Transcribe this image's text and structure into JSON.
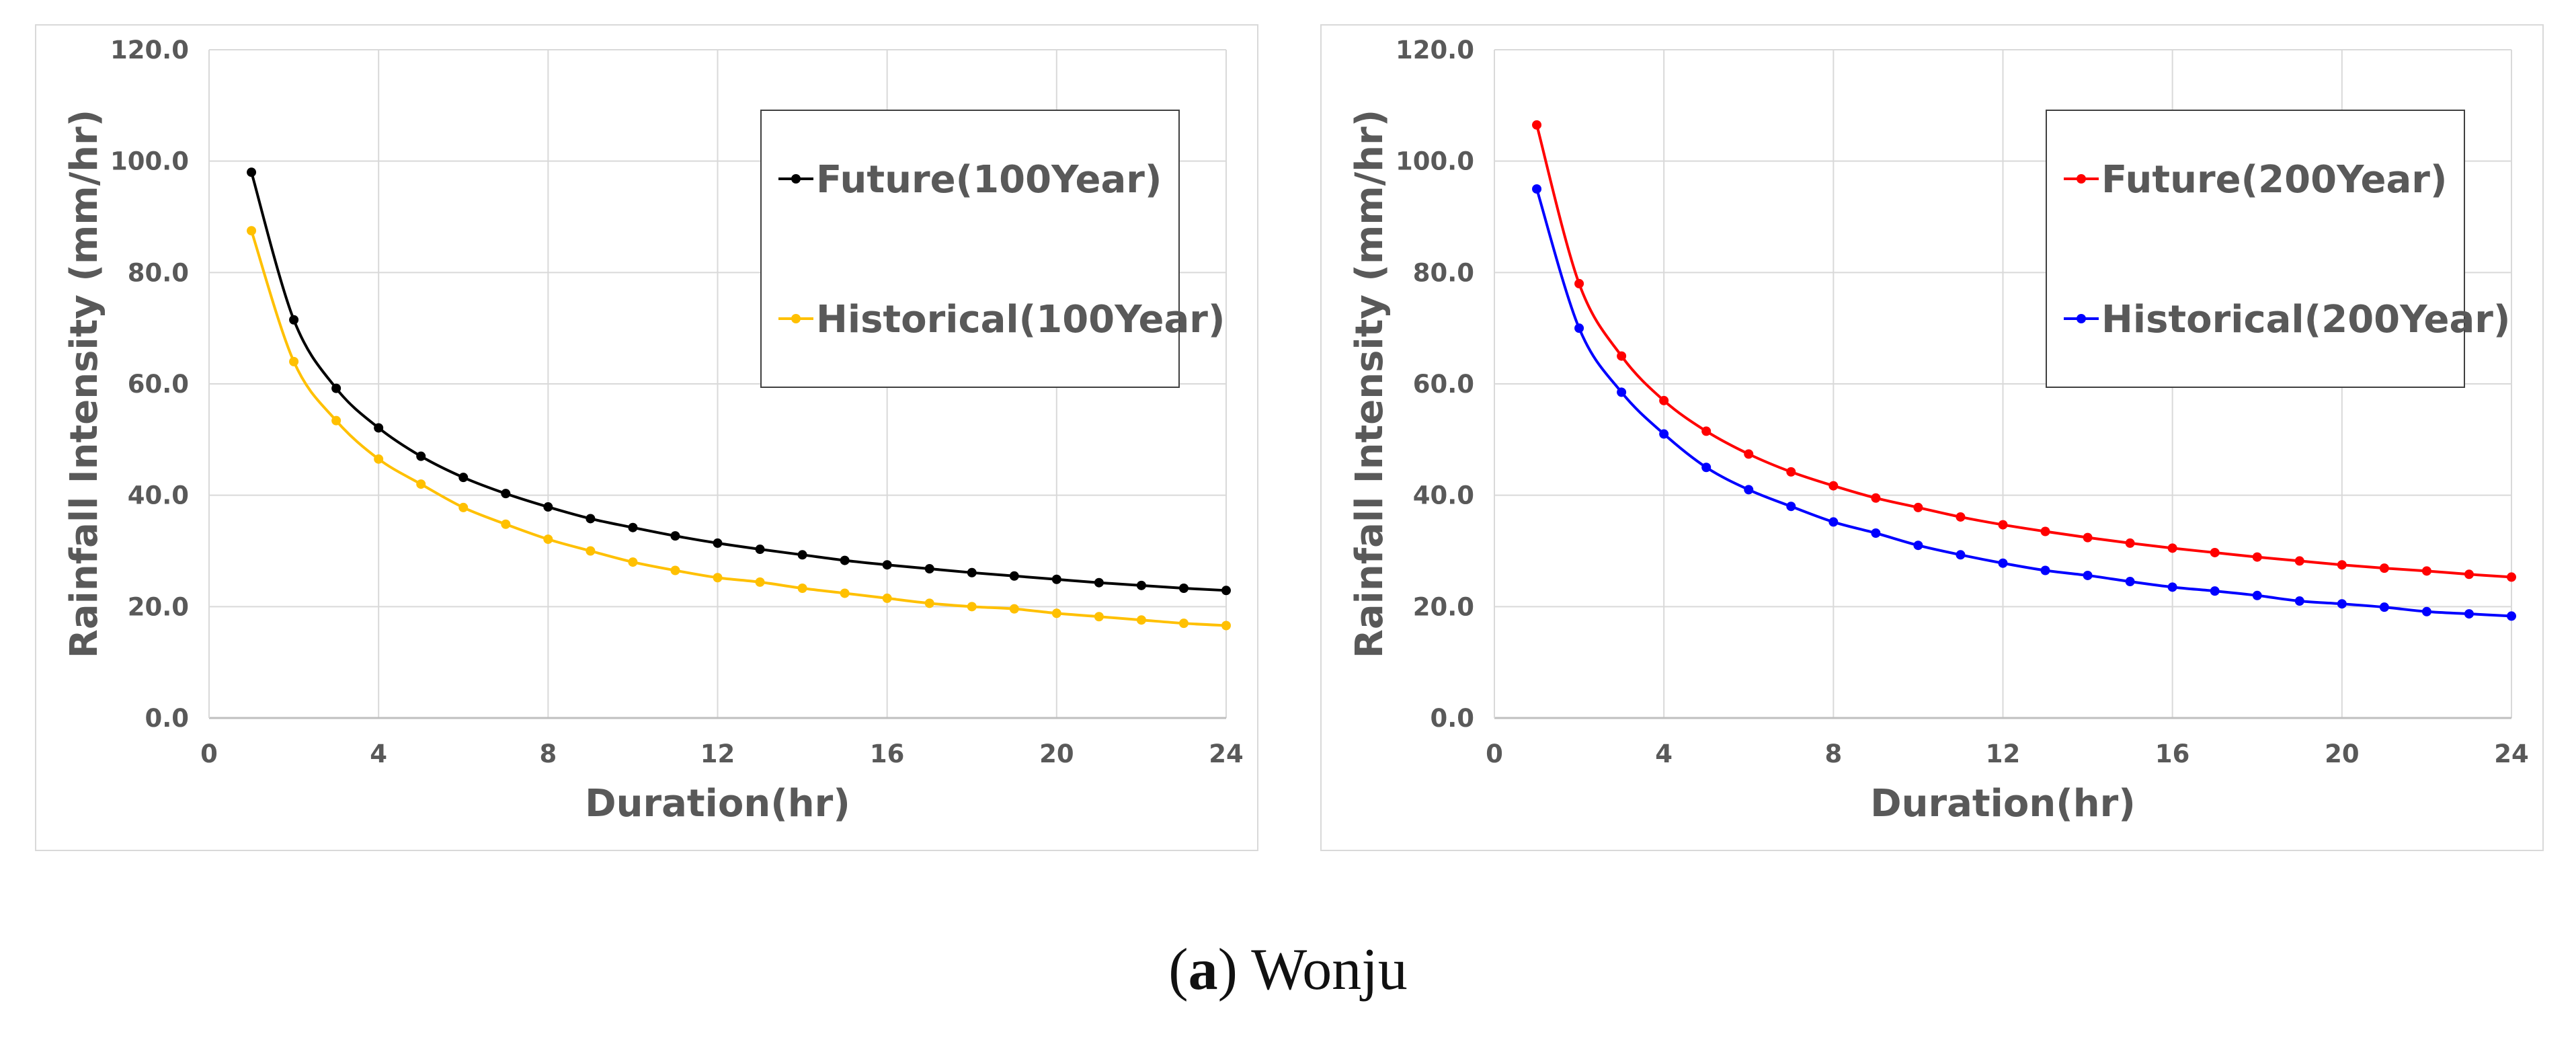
{
  "chart_data": [
    {
      "type": "line",
      "xlabel": "Duration(hr)",
      "ylabel": "Rainfall Intensity (mm/hr)",
      "xlim": [
        0,
        24
      ],
      "ylim": [
        0,
        120
      ],
      "x_ticks": [
        "0",
        "4",
        "8",
        "12",
        "16",
        "20",
        "24"
      ],
      "y_ticks": [
        "0.0",
        "20.0",
        "40.0",
        "60.0",
        "80.0",
        "100.0",
        "120.0"
      ],
      "grid": true,
      "legend_position": "top-right",
      "x": [
        1,
        2,
        3,
        4,
        5,
        6,
        7,
        8,
        9,
        10,
        11,
        12,
        13,
        14,
        15,
        16,
        17,
        18,
        19,
        20,
        21,
        22,
        23,
        24
      ],
      "series": [
        {
          "name": "Future(100Year)",
          "color": "#000000",
          "values": [
            98.0,
            71.5,
            59.2,
            52.1,
            47.0,
            43.2,
            40.3,
            37.9,
            35.8,
            34.2,
            32.7,
            31.4,
            30.3,
            29.3,
            28.3,
            27.5,
            26.8,
            26.1,
            25.5,
            24.9,
            24.3,
            23.8,
            23.3,
            22.9
          ]
        },
        {
          "name": "Historical(100Year)",
          "color": "#FFC000",
          "values": [
            87.5,
            64.0,
            53.4,
            46.5,
            42.0,
            37.8,
            34.8,
            32.1,
            30.0,
            28.0,
            26.5,
            25.2,
            24.4,
            23.3,
            22.4,
            21.5,
            20.6,
            20.0,
            19.6,
            18.8,
            18.2,
            17.6,
            17.0,
            16.6
          ]
        }
      ]
    },
    {
      "type": "line",
      "xlabel": "Duration(hr)",
      "ylabel": "Rainfall Intensity (mm/hr)",
      "xlim": [
        0,
        24
      ],
      "ylim": [
        0,
        120
      ],
      "x_ticks": [
        "0",
        "4",
        "8",
        "12",
        "16",
        "20",
        "24"
      ],
      "y_ticks": [
        "0.0",
        "20.0",
        "40.0",
        "60.0",
        "80.0",
        "100.0",
        "120.0"
      ],
      "grid": true,
      "legend_position": "top-right",
      "x": [
        1,
        2,
        3,
        4,
        5,
        6,
        7,
        8,
        9,
        10,
        11,
        12,
        13,
        14,
        15,
        16,
        17,
        18,
        19,
        20,
        21,
        22,
        23,
        24
      ],
      "series": [
        {
          "name": "Future(200Year)",
          "color": "#FF0000",
          "values": [
            106.5,
            78.0,
            65.0,
            57.0,
            51.5,
            47.4,
            44.2,
            41.7,
            39.5,
            37.8,
            36.1,
            34.7,
            33.5,
            32.4,
            31.4,
            30.5,
            29.7,
            28.9,
            28.2,
            27.5,
            26.9,
            26.4,
            25.8,
            25.3
          ]
        },
        {
          "name": "Historical(200Year)",
          "color": "#0000FF",
          "values": [
            95.0,
            70.0,
            58.5,
            51.0,
            45.0,
            41.0,
            38.0,
            35.2,
            33.2,
            31.0,
            29.3,
            27.8,
            26.5,
            25.6,
            24.5,
            23.5,
            22.8,
            22.0,
            21.0,
            20.5,
            19.9,
            19.1,
            18.7,
            18.3
          ]
        }
      ]
    }
  ],
  "caption": {
    "label": "(a)",
    "label_bold": "a",
    "text": "Wonju"
  }
}
